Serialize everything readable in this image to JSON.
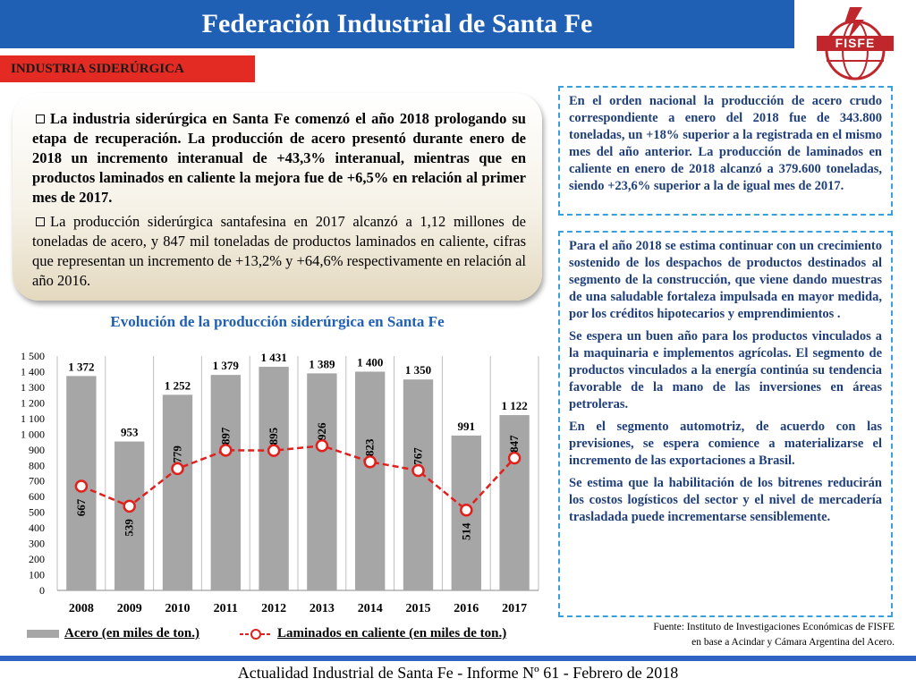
{
  "header": {
    "title": "Federación Industrial de Santa Fe",
    "logo_text": "FISFE"
  },
  "section_tag": "INDUSTRIA SIDERÚRGICA",
  "intro": {
    "p1": "La industria siderúrgica en Santa Fe comenzó el año 2018 prologando su etapa de recuperación. La producción de acero presentó durante enero de 2018 un incremento interanual de +43,3% interanual, mientras que en productos laminados en caliente la mejora fue de +6,5% en relación al primer mes de 2017.",
    "p2": "La producción siderúrgica santafesina en 2017 alcanzó a 1,12 millones de toneladas de acero, y 847 mil toneladas de productos laminados en caliente, cifras que representan un incremento de +13,2% y +64,6% respectivamente en relación al año 2016."
  },
  "right_top": "En el orden nacional la producción de acero crudo correspondiente a enero del 2018 fue de 343.800 toneladas, un +18% superior a la registrada en el mismo mes del año anterior. La producción de laminados en caliente en enero de 2018 alcanzó a 379.600 toneladas, siendo +23,6% superior a la de igual mes de 2017.",
  "right_bottom": [
    "Para el año 2018 se estima continuar con un crecimiento sostenido de los despachos de productos destinados al segmento de la construcción, que viene dando muestras de una saludable fortaleza impulsada en mayor medida, por los créditos hipotecarios y emprendimientos .",
    "Se espera un buen año para los productos vinculados a la maquinaria e implementos agrícolas. El segmento de productos vinculados a la energía continúa su tendencia favorable de la mano de las inversiones en áreas petroleras.",
    "En el segmento automotriz, de acuerdo con las previsiones, se espera comience a materializarse el incremento de las exportaciones a Brasil.",
    "Se estima que la habilitación de los bitrenes reducirán los costos logísticos del sector y el nivel de mercadería trasladada puede incrementarse sensiblemente."
  ],
  "source": {
    "line1": "Fuente: Instituto de Investigaciones Económicas de FISFE",
    "line2": "en base a Acindar y Cámara Argentina del Acero."
  },
  "footer": "Actualidad Industrial de Santa Fe - Informe Nº 61 - Febrero de 2018",
  "colors": {
    "header_blue": "#1f5fb4",
    "section_red": "#e32b23",
    "bar_gray": "#a6a6a6",
    "line_red": "#e0201c",
    "dashed_border": "#3aa0dc"
  },
  "chart_data": {
    "type": "bar",
    "title": "Evolución de la producción siderúrgica en Santa Fe",
    "categories": [
      "2008",
      "2009",
      "2010",
      "2011",
      "2012",
      "2013",
      "2014",
      "2015",
      "2016",
      "2017"
    ],
    "series": [
      {
        "name": "Acero (en miles de ton.)",
        "type": "bar",
        "values": [
          1372,
          953,
          1252,
          1379,
          1431,
          1389,
          1400,
          1350,
          991,
          1122
        ],
        "labels": [
          "1 372",
          "953",
          "1 252",
          "1 379",
          "1 431",
          "1 389",
          "1 400",
          "1 350",
          "991",
          "1 122"
        ]
      },
      {
        "name": "Laminados en caliente (en miles de ton.)",
        "type": "line",
        "values": [
          667,
          539,
          779,
          897,
          895,
          926,
          823,
          767,
          514,
          847
        ],
        "labels": [
          "667",
          "539",
          "779",
          "897",
          "895",
          "926",
          "823",
          "767",
          "514",
          "847"
        ]
      }
    ],
    "ylim": [
      0,
      1500
    ],
    "yticks": [
      "0",
      "100",
      "200",
      "300",
      "400",
      "500",
      "600",
      "700",
      "800",
      "900",
      "1 000",
      "1 100",
      "1 200",
      "1 300",
      "1 400",
      "1 500"
    ],
    "grid": "vertical",
    "legend_position": "bottom"
  }
}
